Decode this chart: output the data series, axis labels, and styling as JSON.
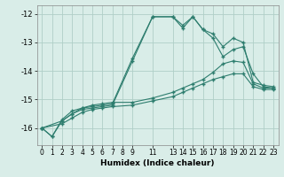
{
  "xlabel": "Humidex (Indice chaleur)",
  "background_color": "#d9ede8",
  "grid_color": "#b0cfc7",
  "line_color": "#2d7d6e",
  "xlim": [
    -0.5,
    23.5
  ],
  "ylim": [
    -16.6,
    -11.7
  ],
  "yticks": [
    -16,
    -15,
    -14,
    -13,
    -12
  ],
  "xticks": [
    0,
    1,
    2,
    3,
    4,
    5,
    6,
    7,
    8,
    9,
    11,
    13,
    14,
    15,
    16,
    17,
    18,
    19,
    20,
    21,
    22,
    23
  ],
  "series": [
    {
      "x": [
        0,
        1,
        2,
        3,
        4,
        5,
        6,
        7,
        9,
        11,
        13,
        14,
        15,
        16,
        17,
        18,
        19,
        20,
        21,
        22,
        23
      ],
      "y": [
        -16.0,
        -16.3,
        -15.7,
        -15.4,
        -15.3,
        -15.25,
        -15.2,
        -15.15,
        -13.55,
        -12.1,
        -12.1,
        -12.4,
        -12.1,
        -12.55,
        -12.7,
        -13.15,
        -12.85,
        -13.0,
        -14.4,
        -14.5,
        -14.55
      ]
    },
    {
      "x": [
        0,
        1,
        2,
        3,
        4,
        5,
        6,
        7,
        9,
        11,
        13,
        14,
        15,
        16,
        17,
        18,
        19,
        20,
        21,
        22,
        23
      ],
      "y": [
        -16.0,
        -16.3,
        -15.75,
        -15.5,
        -15.35,
        -15.3,
        -15.25,
        -15.2,
        -13.65,
        -12.1,
        -12.1,
        -12.5,
        -12.1,
        -12.55,
        -12.85,
        -13.5,
        -13.25,
        -13.15,
        -14.1,
        -14.55,
        -14.6
      ]
    },
    {
      "x": [
        0,
        2,
        3,
        4,
        5,
        6,
        7,
        9,
        11,
        13,
        14,
        15,
        16,
        17,
        18,
        19,
        20,
        21,
        22,
        23
      ],
      "y": [
        -16.0,
        -15.75,
        -15.5,
        -15.3,
        -15.2,
        -15.15,
        -15.1,
        -15.1,
        -14.95,
        -14.75,
        -14.6,
        -14.45,
        -14.3,
        -14.05,
        -13.75,
        -13.65,
        -13.7,
        -14.45,
        -14.6,
        -14.6
      ]
    },
    {
      "x": [
        0,
        2,
        3,
        4,
        5,
        6,
        7,
        9,
        11,
        13,
        14,
        15,
        16,
        17,
        18,
        19,
        20,
        21,
        22,
        23
      ],
      "y": [
        -16.0,
        -15.85,
        -15.65,
        -15.45,
        -15.35,
        -15.3,
        -15.25,
        -15.2,
        -15.05,
        -14.9,
        -14.75,
        -14.6,
        -14.45,
        -14.3,
        -14.2,
        -14.1,
        -14.1,
        -14.55,
        -14.65,
        -14.65
      ]
    }
  ]
}
